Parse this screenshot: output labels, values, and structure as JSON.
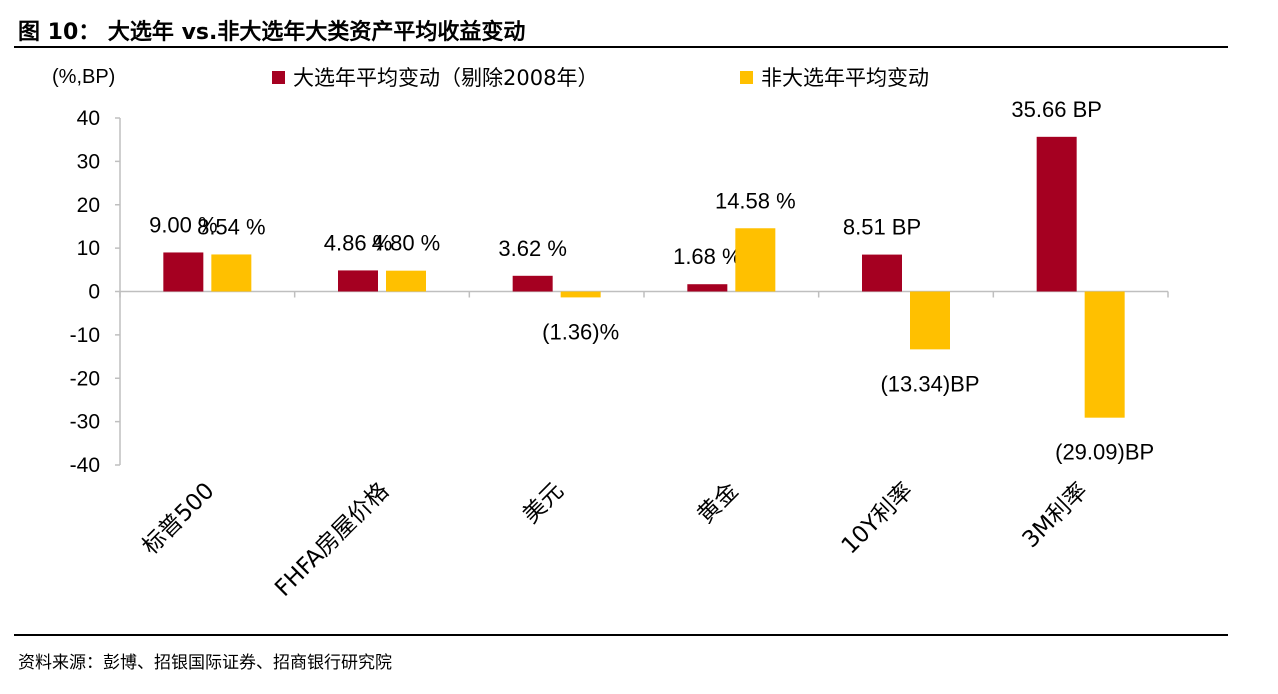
{
  "figure": {
    "title": "图 10：  大选年 vs.非大选年大类资产平均收益变动",
    "source": "资料来源：彭博、招银国际证券、招商银行研究院"
  },
  "chart_data": {
    "type": "bar",
    "unit_label": "(%,BP)",
    "categories": [
      "标普500",
      "FHFA房屋价格",
      "美元",
      "黄金",
      "10Y利率",
      "3M利率"
    ],
    "series": [
      {
        "name": "大选年平均变动（剔除2008年）",
        "color": "#A50021",
        "values": [
          9.0,
          4.86,
          3.62,
          1.68,
          8.51,
          35.66
        ],
        "labels": [
          "9.00 %",
          "4.86 %",
          "3.62 %",
          "1.68 %",
          "8.51 BP",
          "35.66 BP"
        ]
      },
      {
        "name": "非大选年平均变动",
        "color": "#FFC000",
        "values": [
          8.54,
          4.8,
          -1.36,
          14.58,
          -13.34,
          -29.09
        ],
        "labels": [
          "8.54 %",
          "4.80 %",
          "(1.36)%",
          "14.58 %",
          "(13.34)BP",
          "(29.09)BP"
        ]
      }
    ],
    "ylim": [
      -40,
      40
    ],
    "yticks": [
      "40",
      "30",
      "20",
      "10",
      "0",
      "-10",
      "-20",
      "-30",
      "-40"
    ],
    "grid": false,
    "legend": "top"
  }
}
